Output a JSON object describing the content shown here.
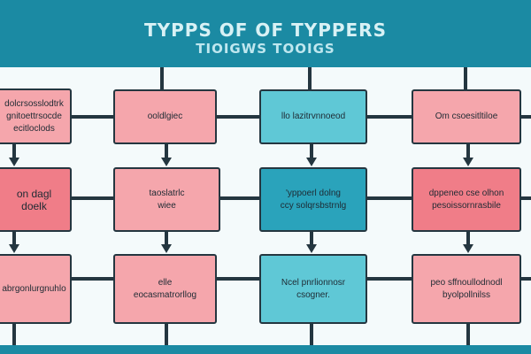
{
  "header": {
    "title_line1": "TYPPS OF OF TYPPERS",
    "title_line2": "TIOIGWS TOOIGS"
  },
  "diagram": {
    "columns": [
      {
        "boxes": [
          {
            "lines": [
              "dolcrsosslodtrk",
              "gnitoettrsocde",
              "ecitloclods"
            ]
          },
          {
            "lines": [
              "on dagl",
              "doelk"
            ]
          },
          {
            "lines": [
              "abrgonlurgnuhlo"
            ]
          }
        ]
      },
      {
        "boxes": [
          {
            "lines": [
              "ooldlgiec"
            ]
          },
          {
            "lines": [
              "taoslatrlc",
              "wiee"
            ]
          },
          {
            "lines": [
              "elle",
              "eocasmatrorllog"
            ]
          }
        ]
      },
      {
        "boxes": [
          {
            "lines": [
              "llo lazitrvnnoeod"
            ]
          },
          {
            "lines": [
              "'yppoerl dolng",
              "ccy solqrsbstrnlg"
            ]
          },
          {
            "lines": [
              "Ncel pnrlionnosr",
              "csogner."
            ]
          }
        ]
      },
      {
        "boxes": [
          {
            "lines": [
              "Om csoesitltiloe"
            ]
          },
          {
            "lines": [
              "dppeneo cse olhon",
              "pesoissornrasbile"
            ]
          },
          {
            "lines": [
              "peo sffnoullodnodl",
              "byolpollnilss"
            ]
          }
        ]
      }
    ]
  },
  "colors": {
    "header": "#1b8aa3",
    "pink": "#f5a6ac",
    "rose": "#f07d88",
    "teal": "#5fc8d6",
    "teal_dark": "#2aa3bb",
    "line": "#243640"
  }
}
